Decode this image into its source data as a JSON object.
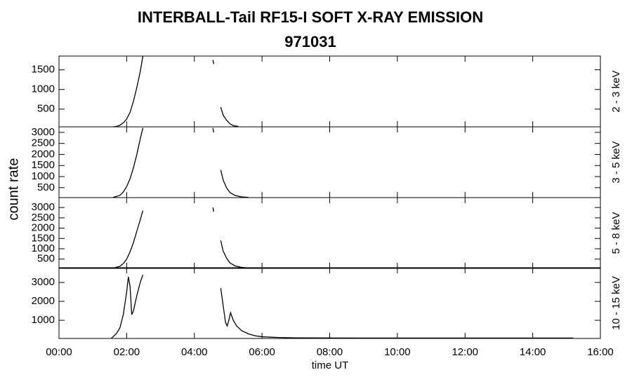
{
  "chart_data": [
    {
      "type": "line",
      "title": "INTERBALL-Tail RF15-I SOFT X-RAY EMISSION",
      "subtitle": "971031",
      "ylabel": "count rate",
      "panel_label": "2 - 3 keV",
      "color": "#000000",
      "xlim": [
        0,
        16
      ],
      "ylim": [
        50,
        1850
      ],
      "yticks": [
        500,
        1000,
        1500
      ],
      "x": [
        1.6,
        1.7,
        1.8,
        1.9,
        2.0,
        2.1,
        2.2,
        2.3,
        2.4,
        2.48,
        null,
        4.55,
        4.57,
        null,
        4.78,
        4.85,
        4.95,
        5.05,
        5.15,
        5.3
      ],
      "values": [
        50,
        60,
        90,
        150,
        250,
        420,
        700,
        1050,
        1450,
        1850,
        null,
        1750,
        1650,
        null,
        550,
        350,
        220,
        130,
        80,
        60
      ]
    },
    {
      "type": "line",
      "panel_label": "3 - 5 keV",
      "color": "#000000",
      "xlim": [
        0,
        16
      ],
      "ylim": [
        50,
        3250
      ],
      "yticks": [
        500,
        1000,
        1500,
        2000,
        2500,
        3000
      ],
      "x": [
        1.6,
        1.8,
        1.9,
        2.0,
        2.1,
        2.2,
        2.3,
        2.4,
        2.48,
        null,
        4.55,
        4.57,
        null,
        4.78,
        4.85,
        4.95,
        5.05,
        5.2,
        5.4,
        5.6
      ],
      "values": [
        60,
        150,
        300,
        550,
        900,
        1400,
        2000,
        2700,
        3200,
        null,
        3200,
        3000,
        null,
        1300,
        850,
        500,
        280,
        150,
        80,
        60
      ]
    },
    {
      "type": "line",
      "panel_label": "5 - 8 keV",
      "color": "#000000",
      "xlim": [
        0,
        16
      ],
      "ylim": [
        50,
        3480
      ],
      "yticks": [
        500,
        1000,
        1500,
        2000,
        2500,
        3000
      ],
      "x": [
        1.6,
        1.8,
        1.9,
        2.0,
        2.1,
        2.2,
        2.3,
        2.4,
        2.48,
        null,
        4.55,
        4.57,
        null,
        4.78,
        4.85,
        4.95,
        5.05,
        5.2,
        5.4,
        5.7
      ],
      "values": [
        60,
        150,
        280,
        500,
        850,
        1300,
        1850,
        2400,
        2850,
        null,
        3000,
        2800,
        null,
        1400,
        900,
        550,
        320,
        170,
        100,
        60
      ]
    },
    {
      "type": "line",
      "panel_label": "10 - 15 keV",
      "color": "#000000",
      "xlim": [
        0,
        16
      ],
      "ylim": [
        40,
        3780
      ],
      "yticks": [
        1000,
        2000,
        3000
      ],
      "xlabel": "time UT",
      "xticks": [
        {
          "value": 0,
          "label": "00:00"
        },
        {
          "value": 2,
          "label": "02:00"
        },
        {
          "value": 4,
          "label": "04:00"
        },
        {
          "value": 6,
          "label": "06:00"
        },
        {
          "value": 8,
          "label": "08:00"
        },
        {
          "value": 10,
          "label": "10:00"
        },
        {
          "value": 12,
          "label": "12:00"
        },
        {
          "value": 14,
          "label": "14:00"
        },
        {
          "value": 16,
          "label": "16:00"
        }
      ],
      "x": [
        1.55,
        1.7,
        1.8,
        1.9,
        2.0,
        2.05,
        2.1,
        2.15,
        2.2,
        2.3,
        2.4,
        2.48,
        null,
        4.78,
        4.85,
        4.92,
        4.97,
        5.02,
        5.07,
        5.15,
        5.25,
        5.4,
        5.6,
        5.8,
        6.0,
        6.5,
        7.0,
        8.0,
        9.0,
        10.0,
        11.0,
        12.0,
        13.0,
        14.0,
        15.2
      ],
      "values": [
        50,
        300,
        600,
        1300,
        2500,
        3300,
        2800,
        1300,
        1500,
        2300,
        3000,
        3400,
        null,
        2700,
        1800,
        900,
        700,
        1000,
        1400,
        1000,
        700,
        450,
        280,
        180,
        130,
        90,
        70,
        65,
        60,
        60,
        60,
        60,
        60,
        60,
        60
      ]
    }
  ]
}
